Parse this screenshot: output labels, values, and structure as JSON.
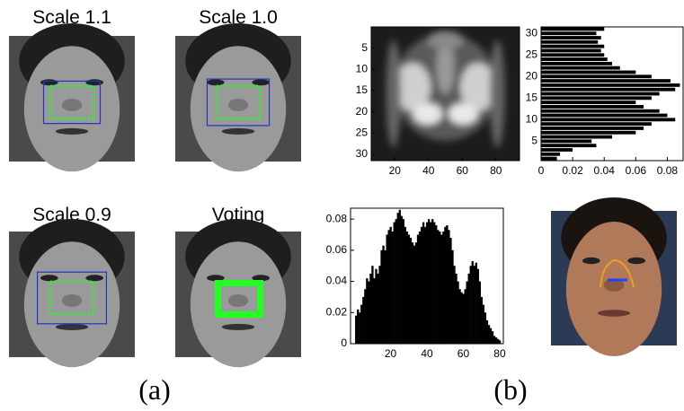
{
  "panel_a": {
    "images": [
      {
        "title": "Scale 1.1"
      },
      {
        "title": "Scale 1.0"
      },
      {
        "title": "Scale 0.9"
      },
      {
        "title": "Voting"
      }
    ],
    "caption": "(a)"
  },
  "panel_b": {
    "caption": "(b)"
  },
  "chart_data": [
    {
      "type": "image",
      "xlim": [
        6,
        94
      ],
      "ylim": [
        31.5,
        0
      ],
      "xticks": [
        20,
        40,
        60,
        80
      ],
      "yticks": [
        5,
        10,
        15,
        20,
        25,
        30
      ]
    },
    {
      "type": "hbar",
      "color": "#000000",
      "xlim": [
        0,
        0.09
      ],
      "ylim": [
        0.5,
        31.5
      ],
      "xticks": [
        0,
        0.02,
        0.04,
        0.06,
        0.08
      ],
      "yticks": [
        5,
        10,
        15,
        20,
        25,
        30
      ],
      "y": [
        1,
        2,
        3,
        4,
        5,
        6,
        7,
        8,
        9,
        10,
        11,
        12,
        13,
        14,
        15,
        16,
        17,
        18,
        19,
        20,
        21,
        22,
        23,
        24,
        25,
        26,
        27,
        28,
        29,
        30,
        31
      ],
      "values": [
        0.01,
        0.012,
        0.02,
        0.035,
        0.032,
        0.045,
        0.06,
        0.065,
        0.07,
        0.085,
        0.08,
        0.075,
        0.065,
        0.06,
        0.07,
        0.075,
        0.085,
        0.088,
        0.082,
        0.07,
        0.06,
        0.05,
        0.045,
        0.042,
        0.04,
        0.038,
        0.04,
        0.036,
        0.038,
        0.035,
        0.04
      ]
    },
    {
      "type": "bar",
      "color": "#000000",
      "xlim": [
        -2,
        82
      ],
      "ylim": [
        0,
        0.087
      ],
      "xticks": [
        20,
        40,
        60,
        80
      ],
      "yticks": [
        0,
        0.02,
        0.04,
        0.06,
        0.08
      ],
      "x": [
        1,
        2,
        3,
        4,
        5,
        6,
        7,
        8,
        9,
        10,
        11,
        12,
        13,
        14,
        15,
        16,
        17,
        18,
        19,
        20,
        21,
        22,
        23,
        24,
        25,
        26,
        27,
        28,
        29,
        30,
        31,
        32,
        33,
        34,
        35,
        36,
        37,
        38,
        39,
        40,
        41,
        42,
        43,
        44,
        45,
        46,
        47,
        48,
        49,
        50,
        51,
        52,
        53,
        54,
        55,
        56,
        57,
        58,
        59,
        60,
        61,
        62,
        63,
        64,
        65,
        66,
        67,
        68,
        69,
        70,
        71,
        72,
        73,
        74,
        75,
        76,
        77,
        78,
        79,
        80
      ],
      "values": [
        0.018,
        0.022,
        0.02,
        0.025,
        0.03,
        0.035,
        0.042,
        0.04,
        0.045,
        0.05,
        0.042,
        0.048,
        0.045,
        0.05,
        0.06,
        0.063,
        0.06,
        0.07,
        0.073,
        0.075,
        0.072,
        0.078,
        0.08,
        0.084,
        0.086,
        0.082,
        0.08,
        0.075,
        0.072,
        0.07,
        0.068,
        0.065,
        0.063,
        0.065,
        0.07,
        0.072,
        0.075,
        0.078,
        0.075,
        0.078,
        0.08,
        0.078,
        0.08,
        0.078,
        0.076,
        0.073,
        0.072,
        0.07,
        0.072,
        0.075,
        0.076,
        0.073,
        0.068,
        0.06,
        0.05,
        0.045,
        0.04,
        0.035,
        0.033,
        0.032,
        0.035,
        0.04,
        0.045,
        0.05,
        0.053,
        0.05,
        0.052,
        0.048,
        0.04,
        0.03,
        0.025,
        0.02,
        0.015,
        0.012,
        0.01,
        0.008,
        0.005,
        0.004,
        0.003,
        0.002
      ]
    }
  ]
}
